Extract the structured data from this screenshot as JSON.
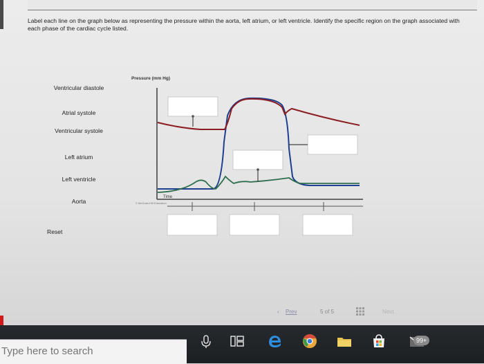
{
  "instructions": "Label each line on the graph below as representing the pressure within the aorta, left atrium, or left ventricle. Identify the specific region on the graph associated with each phase of the cardiac cycle listed.",
  "labels": [
    "Ventricular diastole",
    "Atrial systole",
    "Ventricular systole",
    "Left atrium",
    "Left ventricle",
    "Aorta"
  ],
  "reset_label": "Reset",
  "graph": {
    "y_axis_label": "Pressure (mm Hg)",
    "x_axis_label": "Time",
    "copyright": "© McGraw-Hill Education",
    "line_colors": {
      "aorta": "#8b1c22",
      "left_ventricle": "#1d3f8f",
      "left_atrium": "#2d6e4e"
    }
  },
  "pager": {
    "prev_label": "Prev",
    "page_info": "5 of 5",
    "next_label": "Next"
  },
  "taskbar": {
    "search_placeholder": "Type here to search",
    "notification_badge": "99+"
  },
  "colors": {
    "accent_red": "#d21a1a",
    "taskbar": "#1f2225"
  }
}
